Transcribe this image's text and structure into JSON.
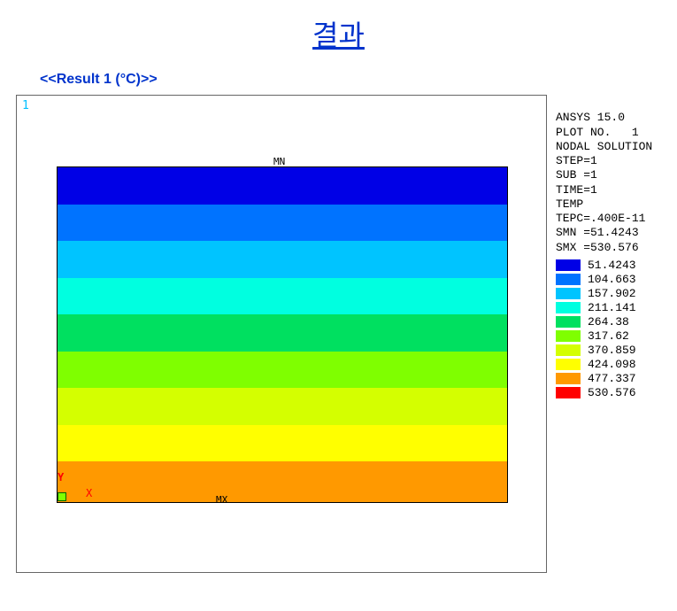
{
  "title": "결과",
  "subtitle": "<<Result 1 (°C)>>",
  "corner_label": "1",
  "mn_label": "MN",
  "mx_label": "MX",
  "axis_y": "Y",
  "axis_x": "X",
  "info": {
    "software": "ANSYS 15.0",
    "plot_no": "PLOT NO.   1",
    "solution": "NODAL SOLUTION",
    "step": "STEP=1",
    "sub": "SUB =1",
    "time": "TIME=1",
    "var": "TEMP",
    "tepc": "TEPC=.400E-11",
    "smn": "SMN =51.4243",
    "smx": "SMX =530.576"
  },
  "contour": {
    "type": "banded-contour",
    "bands": [
      {
        "color": "#0000e6",
        "value": "51.4243"
      },
      {
        "color": "#0073ff",
        "value": "104.663"
      },
      {
        "color": "#00c4ff",
        "value": "157.902"
      },
      {
        "color": "#00ffe0",
        "value": "211.141"
      },
      {
        "color": "#00e060",
        "value": "264.38"
      },
      {
        "color": "#7fff00",
        "value": "317.62"
      },
      {
        "color": "#d4ff00",
        "value": "370.859"
      },
      {
        "color": "#ffff00",
        "value": "424.098"
      },
      {
        "color": "#ff9900",
        "value": "477.337"
      },
      {
        "color": "#ff0000",
        "value": "530.576"
      }
    ],
    "band_count": 9
  }
}
